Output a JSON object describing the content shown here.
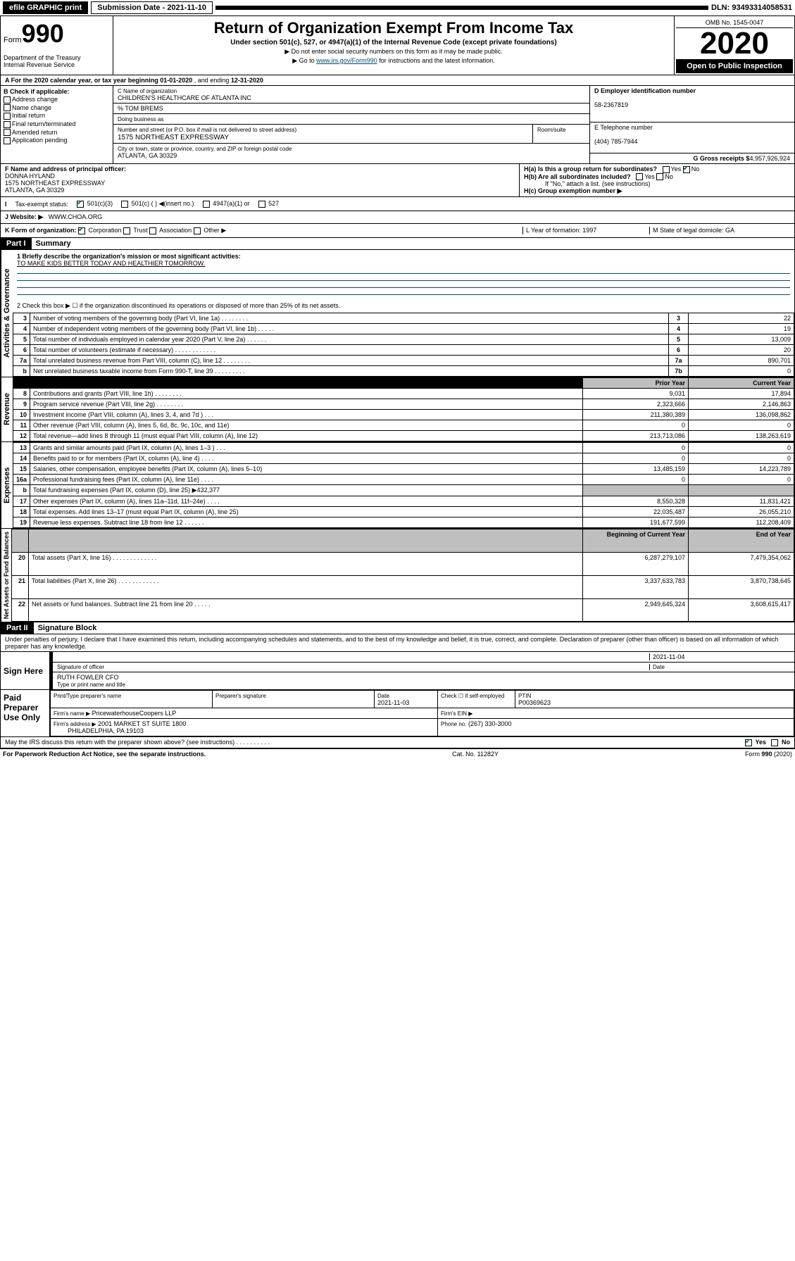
{
  "topbar": {
    "efile": "efile GRAPHIC print",
    "submission": "Submission Date - 2021-11-10",
    "dln": "DLN: 93493314058531"
  },
  "header": {
    "form_label": "Form",
    "form_num": "990",
    "dept": "Department of the Treasury\nInternal Revenue Service",
    "title": "Return of Organization Exempt From Income Tax",
    "subtitle": "Under section 501(c), 527, or 4947(a)(1) of the Internal Revenue Code (except private foundations)",
    "note1": "▶ Do not enter social security numbers on this form as it may be made public.",
    "note2_pre": "▶ Go to ",
    "note2_link": "www.irs.gov/Form990",
    "note2_post": " for instructions and the latest information.",
    "omb": "OMB No. 1545-0047",
    "year": "2020",
    "inspection": "Open to Public Inspection"
  },
  "sectionA": {
    "text_pre": "A   For the 2020 calendar year, or tax year beginning ",
    "begin": "01-01-2020",
    "mid": "   , and ending ",
    "end": "12-31-2020"
  },
  "sectionB": {
    "label": "B Check if applicable:",
    "opts": [
      "Address change",
      "Name change",
      "Initial return",
      "Final return/terminated",
      "Amended return",
      "Application pending"
    ]
  },
  "sectionC": {
    "name_label": "C Name of organization",
    "name": "CHILDREN'S HEALTHCARE OF ATLANTA INC",
    "care_of": "% TOM BREMS",
    "dba_label": "Doing business as",
    "addr_label": "Number and street (or P.O. box if mail is not delivered to street address)",
    "room_label": "Room/suite",
    "addr": "1575 NORTHEAST EXPRESSWAY",
    "city_label": "City or town, state or province, country, and ZIP or foreign postal code",
    "city": "ATLANTA, GA  30329"
  },
  "sectionD": {
    "label": "D Employer identification number",
    "value": "58-2367819"
  },
  "sectionE": {
    "label": "E Telephone number",
    "value": "(404) 785-7944"
  },
  "sectionG": {
    "label": "G Gross receipts $",
    "value": "4,957,926,924"
  },
  "sectionF": {
    "label": "F  Name and address of principal officer:",
    "name": "DONNA HYLAND",
    "addr1": "1575 NORTHEAST EXPRESSWAY",
    "addr2": "ATLANTA, GA  30329"
  },
  "sectionH": {
    "a": "H(a)  Is this a group return for subordinates?",
    "b": "H(b)  Are all subordinates included?",
    "b_note": "If \"No,\" attach a list. (see instructions)",
    "c": "H(c)  Group exemption number ▶",
    "yes": "Yes",
    "no": "No"
  },
  "sectionI": {
    "label": "Tax-exempt status:",
    "opt1": "501(c)(3)",
    "opt2": "501(c) (  ) ◀(insert no.)",
    "opt3": "4947(a)(1) or",
    "opt4": "527"
  },
  "sectionJ": {
    "label": "J   Website: ▶",
    "value": "WWW.CHOA.ORG"
  },
  "sectionK": {
    "label": "K Form of organization:",
    "opts": [
      "Corporation",
      "Trust",
      "Association",
      "Other ▶"
    ],
    "L": "L Year of formation: 1997",
    "M": "M State of legal domicile: GA"
  },
  "part1": {
    "hdr": "Part I",
    "title": "Summary",
    "q1": "1  Briefly describe the organization's mission or most significant activities:",
    "q1v": "TO MAKE KIDS BETTER TODAY AND HEALTHIER TOMORROW.",
    "q2": "2   Check this box ▶ ☐  if the organization discontinued its operations or disposed of more than 25% of its net assets.",
    "side1": "Activities & Governance",
    "side2": "Revenue",
    "side3": "Expenses",
    "side4": "Net Assets or Fund Balances",
    "rows_gov": [
      {
        "n": "3",
        "t": "Number of voting members of the governing body (Part VI, line 1a)   .   .   .   .   .   .   .   .",
        "b": "3",
        "v": "22"
      },
      {
        "n": "4",
        "t": "Number of independent voting members of the governing body (Part VI, line 1b)   .   .   .   .   .",
        "b": "4",
        "v": "19"
      },
      {
        "n": "5",
        "t": "Total number of individuals employed in calendar year 2020 (Part V, line 2a)   .   .   .   .   .   .",
        "b": "5",
        "v": "13,009"
      },
      {
        "n": "6",
        "t": "Total number of volunteers (estimate if necessary)   .   .   .   .   .   .   .   .   .   .   .   .",
        "b": "6",
        "v": "20"
      },
      {
        "n": "7a",
        "t": "Total unrelated business revenue from Part VIII, column (C), line 12   .   .   .   .   .   .   .   .",
        "b": "7a",
        "v": "890,701"
      },
      {
        "n": "b",
        "t": "Net unrelated business taxable income from Form 990-T, line 39   .   .   .   .   .   .   .   .   .",
        "b": "7b",
        "v": "0"
      }
    ],
    "col_prior": "Prior Year",
    "col_current": "Current Year",
    "rows_rev": [
      {
        "n": "8",
        "t": "Contributions and grants (Part VIII, line 1h)   .   .   .   .   .   .   .   .",
        "p": "9,031",
        "c": "17,894"
      },
      {
        "n": "9",
        "t": "Program service revenue (Part VIII, line 2g)   .   .   .   .   .   .   .   .",
        "p": "2,323,666",
        "c": "2,146,863"
      },
      {
        "n": "10",
        "t": "Investment income (Part VIII, column (A), lines 3, 4, and 7d )   .   .   .",
        "p": "211,380,389",
        "c": "136,098,862"
      },
      {
        "n": "11",
        "t": "Other revenue (Part VIII, column (A), lines 5, 6d, 8c, 9c, 10c, and 11e)",
        "p": "0",
        "c": "0"
      },
      {
        "n": "12",
        "t": "Total revenue—add lines 8 through 11 (must equal Part VIII, column (A), line 12)",
        "p": "213,713,086",
        "c": "138,263,619"
      }
    ],
    "rows_exp": [
      {
        "n": "13",
        "t": "Grants and similar amounts paid (Part IX, column (A), lines 1–3 )   .   .   .",
        "p": "0",
        "c": "0"
      },
      {
        "n": "14",
        "t": "Benefits paid to or for members (Part IX, column (A), line 4)   .   .   .   .",
        "p": "0",
        "c": "0"
      },
      {
        "n": "15",
        "t": "Salaries, other compensation, employee benefits (Part IX, column (A), lines 5–10)",
        "p": "13,485,159",
        "c": "14,223,789"
      },
      {
        "n": "16a",
        "t": "Professional fundraising fees (Part IX, column (A), line 11e)   .   .   .   .",
        "p": "0",
        "c": "0"
      },
      {
        "n": "b",
        "t": "Total fundraising expenses (Part IX, column (D), line 25) ▶432,377",
        "p": "",
        "c": ""
      },
      {
        "n": "17",
        "t": "Other expenses (Part IX, column (A), lines 11a–11d, 11f–24e)   .   .   .   .",
        "p": "8,550,328",
        "c": "11,831,421"
      },
      {
        "n": "18",
        "t": "Total expenses. Add lines 13–17 (must equal Part IX, column (A), line 25)",
        "p": "22,035,487",
        "c": "26,055,210"
      },
      {
        "n": "19",
        "t": "Revenue less expenses. Subtract line 18 from line 12   .   .   .   .   .   .",
        "p": "191,677,599",
        "c": "112,208,409"
      }
    ],
    "col_begin": "Beginning of Current Year",
    "col_end": "End of Year",
    "rows_net": [
      {
        "n": "20",
        "t": "Total assets (Part X, line 16)   .   .   .   .   .   .   .   .   .   .   .   .   .",
        "p": "6,287,279,107",
        "c": "7,479,354,062"
      },
      {
        "n": "21",
        "t": "Total liabilities (Part X, line 26)   .   .   .   .   .   .   .   .   .   .   .   .",
        "p": "3,337,633,783",
        "c": "3,870,738,645"
      },
      {
        "n": "22",
        "t": "Net assets or fund balances. Subtract line 21 from line 20   .   .   .   .   .",
        "p": "2,949,645,324",
        "c": "3,608,615,417"
      }
    ]
  },
  "part2": {
    "hdr": "Part II",
    "title": "Signature Block",
    "decl": "Under penalties of perjury, I declare that I have examined this return, including accompanying schedules and statements, and to the best of my knowledge and belief, it is true, correct, and complete. Declaration of preparer (other than officer) is based on all information of which preparer has any knowledge.",
    "sign_here": "Sign Here",
    "sig_officer": "Signature of officer",
    "sig_date": "2021-11-04",
    "date_label": "Date",
    "officer_name": "RUTH FOWLER CFO",
    "type_name": "Type or print name and title",
    "paid": "Paid Preparer Use Only",
    "prep_name_label": "Print/Type preparer's name",
    "prep_sig_label": "Preparer's signature",
    "prep_date_label": "Date",
    "prep_date": "2021-11-03",
    "check_label": "Check ☐ if self-employed",
    "ptin_label": "PTIN",
    "ptin": "P00369623",
    "firm_name_label": "Firm's name    ▶",
    "firm_name": "PricewaterhouseCoopers LLP",
    "firm_ein_label": "Firm's EIN ▶",
    "firm_addr_label": "Firm's address ▶",
    "firm_addr": "2001 MARKET ST SUITE 1800",
    "firm_city": "PHILADELPHIA, PA  19103",
    "phone_label": "Phone no.",
    "phone": "(267) 330-3000",
    "discuss": "May the IRS discuss this return with the preparer shown above? (see instructions)   .   .   .   .   .   .   .   .   .   .",
    "yes": "Yes",
    "no": "No"
  },
  "footer": {
    "left": "For Paperwork Reduction Act Notice, see the separate instructions.",
    "mid": "Cat. No. 11282Y",
    "right": "Form 990 (2020)"
  }
}
